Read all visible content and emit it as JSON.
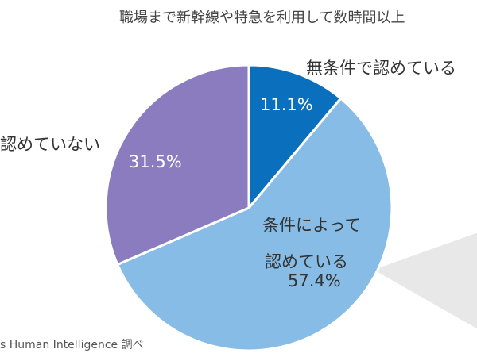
{
  "title": "職場まで新幹線や特急を利用して数時間以上",
  "source": "s Human Intelligence 調べ",
  "chart_data": {
    "type": "pie",
    "title": "職場まで新幹線や特急を利用して数時間以上",
    "start_angle_deg": 0,
    "direction": "clockwise",
    "slices": [
      {
        "label": "無条件で認めている",
        "value": 11.1,
        "value_text": "11.1%",
        "color": "#0a70bd"
      },
      {
        "label_line1": "条件によって",
        "label_line2": "認めている",
        "value": 57.4,
        "value_text": "57.4%",
        "color": "#87bce6"
      },
      {
        "label": "認めていない",
        "value": 31.5,
        "value_text": "31.5%",
        "color": "#8b7cc0"
      }
    ]
  }
}
